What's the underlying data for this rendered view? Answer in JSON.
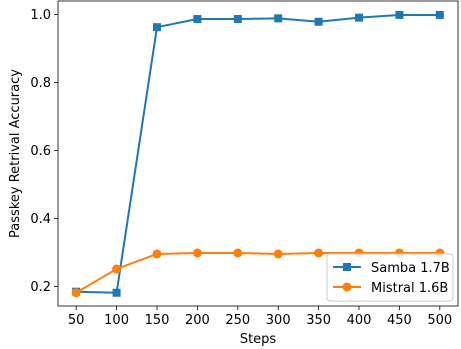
{
  "chart_data": {
    "type": "line",
    "x": [
      50,
      100,
      150,
      200,
      250,
      300,
      350,
      400,
      450,
      500
    ],
    "xticks": [
      "50",
      "100",
      "150",
      "200",
      "250",
      "300",
      "350",
      "400",
      "450",
      "500"
    ],
    "yticks": [
      "0.2",
      "0.4",
      "0.6",
      "0.8",
      "1.0"
    ],
    "xlabel": "Steps",
    "ylabel": "Passkey Retrival Accuracy",
    "xlim": [
      27.5,
      522.5
    ],
    "ylim": [
      0.143,
      1.04
    ],
    "grid": false,
    "legend_position": "lower-right",
    "series": [
      {
        "name": "Samba 1.7B",
        "color": "#1f77b4",
        "marker": "square",
        "values": [
          0.185,
          0.182,
          0.963,
          0.987,
          0.987,
          0.989,
          0.979,
          0.991,
          0.999,
          0.999
        ]
      },
      {
        "name": "Mistral 1.6B",
        "color": "#ff7f0e",
        "marker": "circle",
        "values": [
          0.182,
          0.252,
          0.296,
          0.299,
          0.299,
          0.296,
          0.299,
          0.299,
          0.299,
          0.299
        ]
      }
    ]
  }
}
